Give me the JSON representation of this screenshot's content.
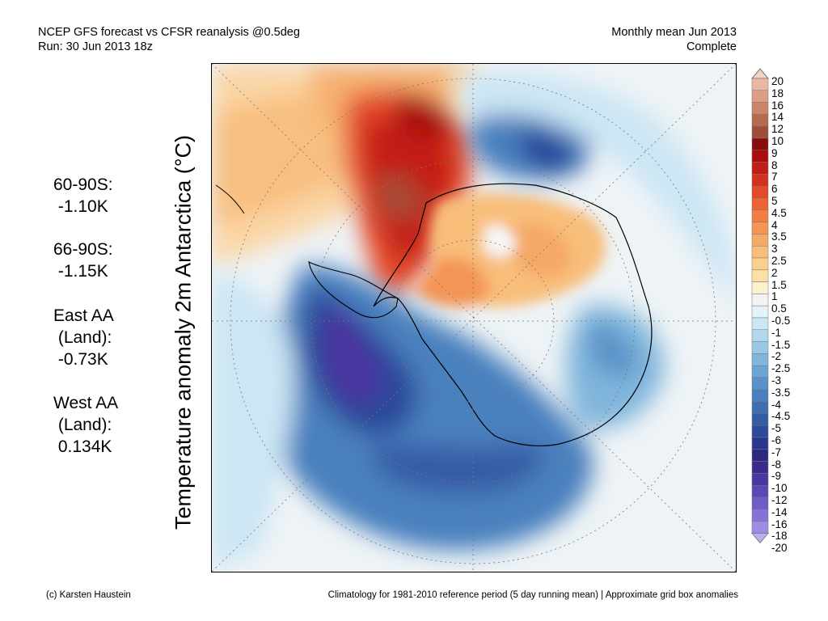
{
  "header": {
    "left_line1": "NCEP GFS forecast vs CFSR reanalysis @0.5deg",
    "left_line2": "Run: 30 Jun 2013 18z",
    "right_line1": "Monthly mean Jun 2013",
    "right_line2": "Complete"
  },
  "stats": {
    "s1_label": "60-90S:",
    "s1_value": " -1.10K",
    "s2_label": "66-90S:",
    "s2_value": " -1.15K",
    "s3_label1": "East AA",
    "s3_label2": " (Land):",
    "s3_value": " -0.73K",
    "s4_label1": "West AA",
    "s4_label2": " (Land):",
    "s4_value": " 0.134K"
  },
  "map": {
    "title": "Temperature anomaly 2m Antarctica (°C)",
    "projection": "south-polar-stereographic",
    "grid": true
  },
  "colorbar": {
    "levels": [
      {
        "label": "20",
        "color": "#f3d2c4"
      },
      {
        "label": "18",
        "color": "#e9b8a2"
      },
      {
        "label": "16",
        "color": "#dc9f85"
      },
      {
        "label": "14",
        "color": "#cc8468"
      },
      {
        "label": "12",
        "color": "#b66a50"
      },
      {
        "label": "10",
        "color": "#9c4e38"
      },
      {
        "label": "9",
        "color": "#8a0b0b"
      },
      {
        "label": "8",
        "color": "#a80e10"
      },
      {
        "label": "7",
        "color": "#c01c18"
      },
      {
        "label": "6",
        "color": "#d3301f"
      },
      {
        "label": "5",
        "color": "#e24a2a"
      },
      {
        "label": "4.5",
        "color": "#ec6436"
      },
      {
        "label": "4",
        "color": "#f17d43"
      },
      {
        "label": "3.5",
        "color": "#f49455"
      },
      {
        "label": "3",
        "color": "#f6a966"
      },
      {
        "label": "2.5",
        "color": "#f8be7a"
      },
      {
        "label": "2",
        "color": "#fad08e"
      },
      {
        "label": "1.5",
        "color": "#fbe0a7"
      },
      {
        "label": "1",
        "color": "#fdf0cd"
      },
      {
        "label": "0.5",
        "color": "#f2f2f2"
      },
      {
        "label": "-0.5",
        "color": "#e4f2fa"
      },
      {
        "label": "-1",
        "color": "#cce6f4"
      },
      {
        "label": "-1.5",
        "color": "#b2d8ee"
      },
      {
        "label": "-2",
        "color": "#98c8e5"
      },
      {
        "label": "-2.5",
        "color": "#80b6dc"
      },
      {
        "label": "-3",
        "color": "#6aa4d2"
      },
      {
        "label": "-3.5",
        "color": "#5892c8"
      },
      {
        "label": "-4",
        "color": "#4a80be"
      },
      {
        "label": "-4.5",
        "color": "#3e6eb2"
      },
      {
        "label": "-5",
        "color": "#345ca6"
      },
      {
        "label": "-6",
        "color": "#2c4a9a"
      },
      {
        "label": "-7",
        "color": "#28388c"
      },
      {
        "label": "-8",
        "color": "#2c2a80"
      },
      {
        "label": "-9",
        "color": "#3a2a8c"
      },
      {
        "label": "-10",
        "color": "#4a36a0"
      },
      {
        "label": "-12",
        "color": "#5c48b4"
      },
      {
        "label": "-14",
        "color": "#705cc6"
      },
      {
        "label": "-16",
        "color": "#8672d6"
      },
      {
        "label": "-18",
        "color": "#9e8ce4"
      },
      {
        "label": "-20",
        "color": "#bcaef0"
      }
    ]
  },
  "footer": {
    "left": "(c) Karsten Haustein",
    "right": "Climatology for 1981-2010 reference period (5 day running mean) | Approximate grid box anomalies"
  }
}
